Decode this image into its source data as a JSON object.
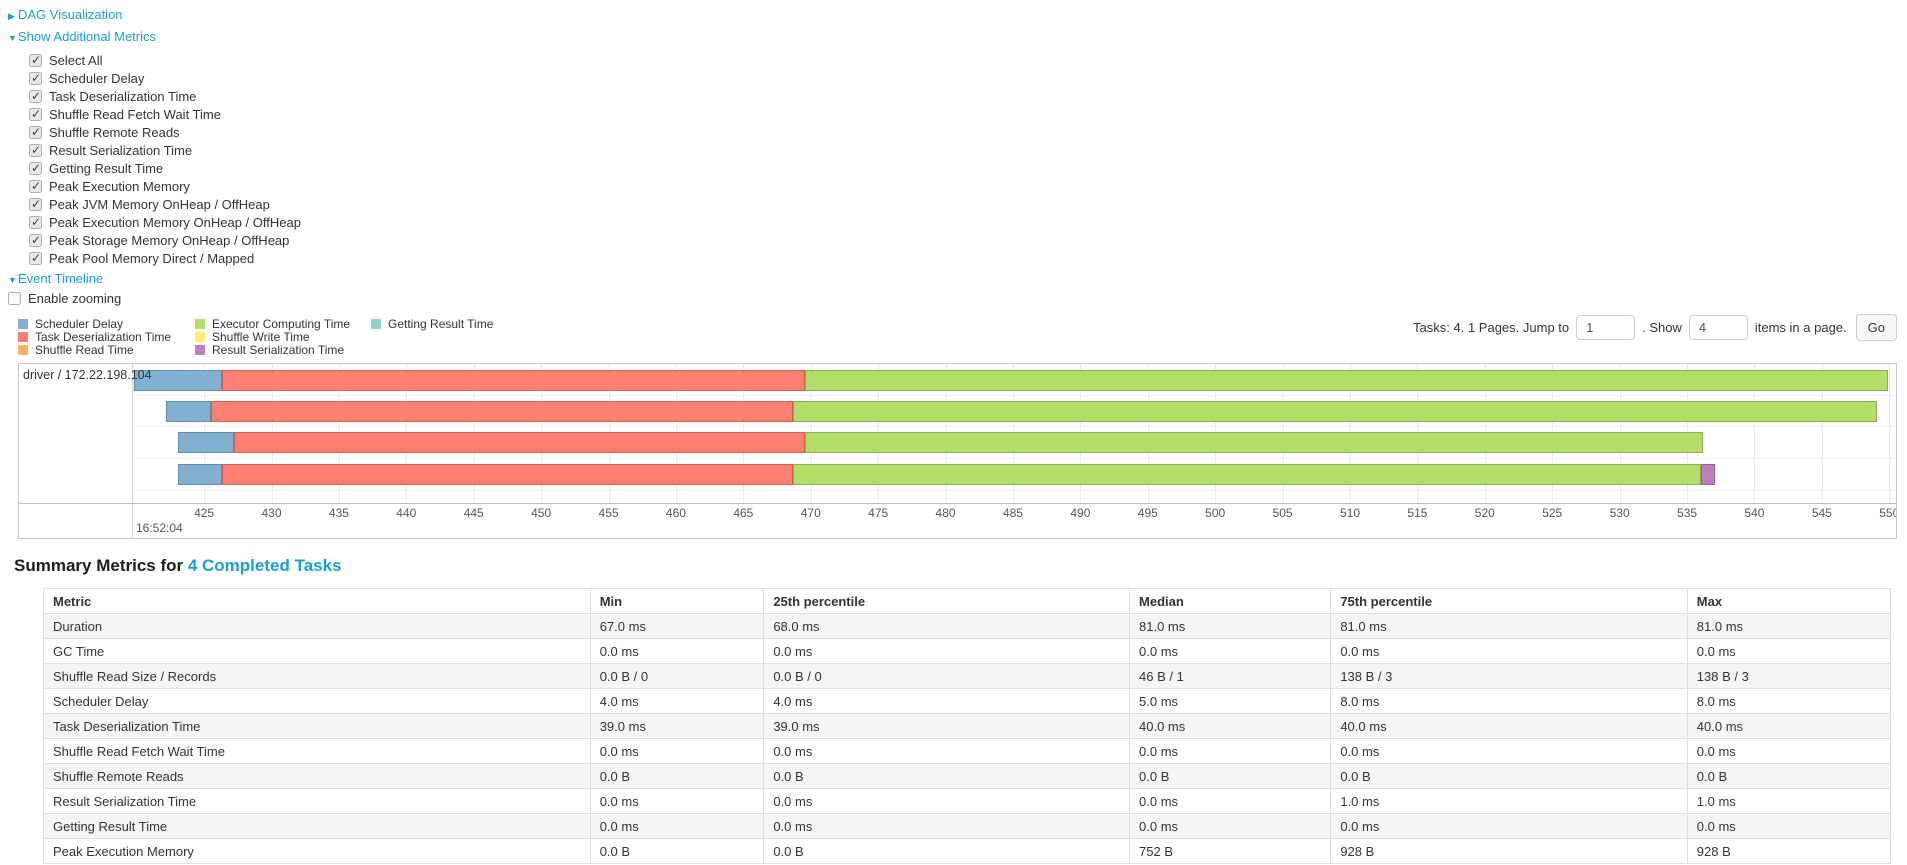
{
  "colors": {
    "link": "#1a9eda",
    "palette": {
      "scheduler_delay": "#80B1D3",
      "task_deserialization": "#FB8072",
      "shuffle_read": "#FDB462",
      "executor_computing": "#B3DE69",
      "shuffle_write": "#FFED6F",
      "result_serialization": "#BC80BD",
      "getting_result": "#8DD3C7"
    }
  },
  "controls": {
    "dag_toggle": {
      "label": "DAG Visualization",
      "state": "collapsed",
      "arrow": "▶"
    },
    "metrics_toggle": {
      "label": "Show Additional Metrics",
      "state": "expanded",
      "arrow": "▼"
    },
    "metric_checkboxes": [
      {
        "label": "Select All",
        "checked": true
      },
      {
        "label": "Scheduler Delay",
        "checked": true
      },
      {
        "label": "Task Deserialization Time",
        "checked": true
      },
      {
        "label": "Shuffle Read Fetch Wait Time",
        "checked": true
      },
      {
        "label": "Shuffle Remote Reads",
        "checked": true
      },
      {
        "label": "Result Serialization Time",
        "checked": true
      },
      {
        "label": "Getting Result Time",
        "checked": true
      },
      {
        "label": "Peak Execution Memory",
        "checked": true
      },
      {
        "label": "Peak JVM Memory OnHeap / OffHeap",
        "checked": true
      },
      {
        "label": "Peak Execution Memory OnHeap / OffHeap",
        "checked": true
      },
      {
        "label": "Peak Storage Memory OnHeap / OffHeap",
        "checked": true
      },
      {
        "label": "Peak Pool Memory Direct / Mapped",
        "checked": true
      }
    ],
    "timeline_toggle": {
      "label": "Event Timeline",
      "state": "expanded",
      "arrow": "▼"
    },
    "enable_zooming": {
      "label": "Enable zooming",
      "checked": false
    }
  },
  "legend": {
    "columns": [
      [
        {
          "key": "scheduler_delay",
          "label": "Scheduler Delay"
        },
        {
          "key": "task_deserialization",
          "label": "Task Deserialization Time"
        },
        {
          "key": "shuffle_read",
          "label": "Shuffle Read Time"
        }
      ],
      [
        {
          "key": "executor_computing",
          "label": "Executor Computing Time"
        },
        {
          "key": "shuffle_write",
          "label": "Shuffle Write Time"
        },
        {
          "key": "result_serialization",
          "label": "Result Serialization Time"
        }
      ],
      [
        {
          "key": "getting_result",
          "label": "Getting Result Time"
        }
      ]
    ]
  },
  "pagination": {
    "text_before": "Tasks: 4. 1 Pages. Jump to",
    "jump_value": "1",
    "text_mid": ". Show",
    "show_value": "4",
    "text_after": "items in a page.",
    "go_label": "Go"
  },
  "chart_data": {
    "type": "timeline",
    "group_label": "driver / 172.22.198.104",
    "axis": {
      "min": 419.8,
      "max": 550.5,
      "tick_start": 425,
      "tick_step": 5,
      "tick_end": 550,
      "major_label": "16:52:04",
      "units": "ms within 16:52:04"
    },
    "tasks": [
      {
        "segments": [
          {
            "key": "scheduler_delay",
            "start": 419.8,
            "end": 426.3
          },
          {
            "key": "task_deserialization",
            "start": 426.3,
            "end": 469.6
          },
          {
            "key": "executor_computing",
            "start": 469.6,
            "end": 549.9
          }
        ]
      },
      {
        "segments": [
          {
            "key": "scheduler_delay",
            "start": 422.2,
            "end": 425.5
          },
          {
            "key": "task_deserialization",
            "start": 425.5,
            "end": 468.7
          },
          {
            "key": "executor_computing",
            "start": 468.7,
            "end": 549.1
          }
        ]
      },
      {
        "segments": [
          {
            "key": "scheduler_delay",
            "start": 423.1,
            "end": 427.2
          },
          {
            "key": "task_deserialization",
            "start": 427.2,
            "end": 469.6
          },
          {
            "key": "executor_computing",
            "start": 469.6,
            "end": 536.2
          }
        ]
      },
      {
        "segments": [
          {
            "key": "scheduler_delay",
            "start": 423.1,
            "end": 426.3
          },
          {
            "key": "task_deserialization",
            "start": 426.3,
            "end": 468.7
          },
          {
            "key": "executor_computing",
            "start": 468.7,
            "end": 536.0
          },
          {
            "key": "result_serialization",
            "start": 536.0,
            "end": 537.1
          }
        ]
      }
    ]
  },
  "summary": {
    "title_prefix": "Summary Metrics for ",
    "title_link": "4 Completed Tasks"
  },
  "table": {
    "headers": [
      "Metric",
      "Min",
      "25th percentile",
      "Median",
      "75th percentile",
      "Max"
    ],
    "col_widths": [
      "29.6%",
      "9.4%",
      "19.8%",
      "10.9%",
      "19.3%",
      "11.0%"
    ],
    "rows": [
      {
        "metric": "Duration",
        "values": [
          "67.0 ms",
          "68.0 ms",
          "81.0 ms",
          "81.0 ms",
          "81.0 ms"
        ]
      },
      {
        "metric": "GC Time",
        "values": [
          "0.0 ms",
          "0.0 ms",
          "0.0 ms",
          "0.0 ms",
          "0.0 ms"
        ]
      },
      {
        "metric": "Shuffle Read Size / Records",
        "values": [
          "0.0 B / 0",
          "0.0 B / 0",
          "46 B / 1",
          "138 B / 3",
          "138 B / 3"
        ]
      },
      {
        "metric": "Scheduler Delay",
        "values": [
          "4.0 ms",
          "4.0 ms",
          "5.0 ms",
          "8.0 ms",
          "8.0 ms"
        ]
      },
      {
        "metric": "Task Deserialization Time",
        "values": [
          "39.0 ms",
          "39.0 ms",
          "40.0 ms",
          "40.0 ms",
          "40.0 ms"
        ]
      },
      {
        "metric": "Shuffle Read Fetch Wait Time",
        "values": [
          "0.0 ms",
          "0.0 ms",
          "0.0 ms",
          "0.0 ms",
          "0.0 ms"
        ]
      },
      {
        "metric": "Shuffle Remote Reads",
        "values": [
          "0.0 B",
          "0.0 B",
          "0.0 B",
          "0.0 B",
          "0.0 B"
        ]
      },
      {
        "metric": "Result Serialization Time",
        "values": [
          "0.0 ms",
          "0.0 ms",
          "0.0 ms",
          "1.0 ms",
          "1.0 ms"
        ]
      },
      {
        "metric": "Getting Result Time",
        "values": [
          "0.0 ms",
          "0.0 ms",
          "0.0 ms",
          "0.0 ms",
          "0.0 ms"
        ]
      },
      {
        "metric": "Peak Execution Memory",
        "values": [
          "0.0 B",
          "0.0 B",
          "752 B",
          "928 B",
          "928 B"
        ]
      }
    ]
  }
}
